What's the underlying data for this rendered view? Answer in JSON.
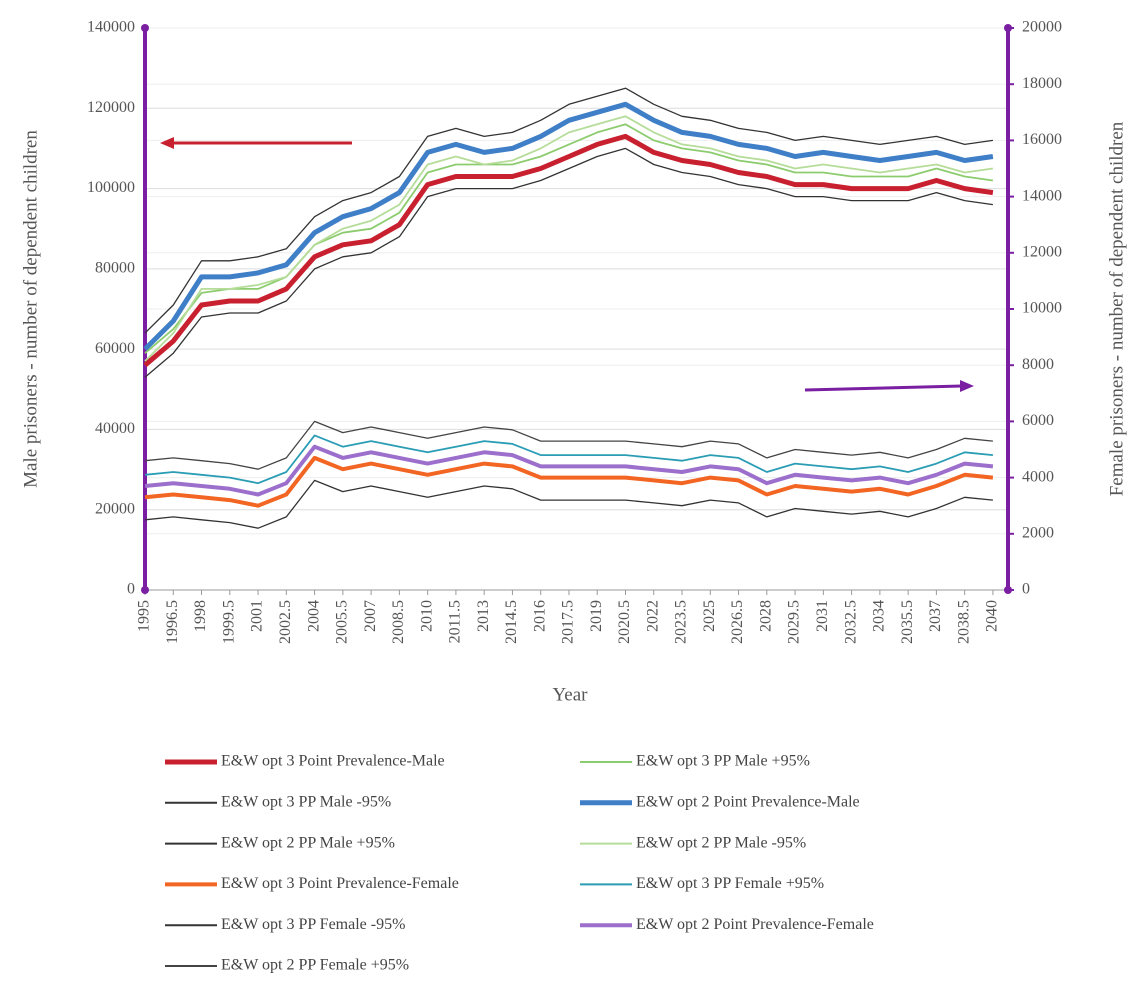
{
  "chart_data": {
    "type": "line",
    "x_label": "Year",
    "y_label": "Male prisoners - number of dependent children",
    "y2_label": "Female prisoners - number of dependent children",
    "x": [
      1995,
      1996.5,
      1998,
      1999.5,
      2001,
      2002.5,
      2004,
      2005.5,
      2007,
      2008.5,
      2010,
      2011.5,
      2013,
      2014.5,
      2016,
      2017.5,
      2019,
      2020.5,
      2022,
      2023.5,
      2025,
      2026.5,
      2028,
      2029.5,
      2031,
      2032.5,
      2034,
      2035.5,
      2037,
      2038.5,
      2040
    ],
    "xlim": [
      1995,
      2040.8
    ],
    "xticks": [
      1995,
      1996.5,
      1998,
      1999.5,
      2001,
      2002.5,
      2004,
      2005.5,
      2007,
      2008.5,
      2010,
      2011.5,
      2013,
      2014.5,
      2016,
      2017.5,
      2019,
      2020.5,
      2022,
      2023.5,
      2025,
      2026.5,
      2028,
      2029.5,
      2031,
      2032.5,
      2034,
      2035.5,
      2037,
      2038.5,
      2040
    ],
    "ylim": [
      0,
      140000
    ],
    "yticks": [
      0,
      20000,
      40000,
      60000,
      80000,
      100000,
      120000,
      140000
    ],
    "y2lim": [
      0,
      20000
    ],
    "y2ticks": [
      0,
      2000,
      4000,
      6000,
      8000,
      10000,
      12000,
      14000,
      16000,
      18000,
      20000
    ],
    "grid": true,
    "axis_color": "#7b1fa2",
    "series": [
      {
        "name": "E&W opt 3 Point Prevalence-Male",
        "color": "#c8202f",
        "width": 5,
        "values": [
          56000,
          62000,
          71000,
          72000,
          72000,
          75000,
          83000,
          86000,
          87000,
          91000,
          101000,
          103000,
          103000,
          103000,
          105000,
          108000,
          111000,
          113000,
          109000,
          107000,
          106000,
          104000,
          103000,
          101000,
          101000,
          100000,
          100000,
          100000,
          102000,
          100000,
          99000
        ]
      },
      {
        "name": "E&W opt 3 PP Male +95%",
        "color": "#8ccc6e",
        "width": 1.8,
        "values": [
          59000,
          65000,
          74000,
          75000,
          75000,
          78000,
          86000,
          89000,
          90000,
          94000,
          104000,
          106000,
          106000,
          106000,
          108000,
          111000,
          114000,
          116000,
          112000,
          110000,
          109000,
          107000,
          106000,
          104000,
          104000,
          103000,
          103000,
          103000,
          105000,
          103000,
          102000
        ]
      },
      {
        "name": "E&W opt 3 PP Male -95%",
        "color": "#333333",
        "width": 1.3,
        "values": [
          53000,
          59000,
          68000,
          69000,
          69000,
          72000,
          80000,
          83000,
          84000,
          88000,
          98000,
          100000,
          100000,
          100000,
          102000,
          105000,
          108000,
          110000,
          106000,
          104000,
          103000,
          101000,
          100000,
          98000,
          98000,
          97000,
          97000,
          97000,
          99000,
          97000,
          96000
        ]
      },
      {
        "name": "E&W opt 2 Point Prevalence-Male",
        "color": "#3f7fc8",
        "width": 5,
        "values": [
          60000,
          67000,
          78000,
          78000,
          79000,
          81000,
          89000,
          93000,
          95000,
          99000,
          109000,
          111000,
          109000,
          110000,
          113000,
          117000,
          119000,
          121000,
          117000,
          114000,
          113000,
          111000,
          110000,
          108000,
          109000,
          108000,
          107000,
          108000,
          109000,
          107000,
          108000
        ]
      },
      {
        "name": "E&W opt 2 PP Male +95%",
        "color": "#333333",
        "width": 1.3,
        "values": [
          64000,
          71000,
          82000,
          82000,
          83000,
          85000,
          93000,
          97000,
          99000,
          103000,
          113000,
          115000,
          113000,
          114000,
          117000,
          121000,
          123000,
          125000,
          121000,
          118000,
          117000,
          115000,
          114000,
          112000,
          113000,
          112000,
          111000,
          112000,
          113000,
          111000,
          112000
        ]
      },
      {
        "name": "E&W opt 2 PP Male -95%",
        "color": "#b5dc98",
        "width": 1.8,
        "values": [
          57000,
          64000,
          75000,
          75000,
          76000,
          78000,
          86000,
          90000,
          92000,
          96000,
          106000,
          108000,
          106000,
          107000,
          110000,
          114000,
          116000,
          118000,
          114000,
          111000,
          110000,
          108000,
          107000,
          105000,
          106000,
          105000,
          104000,
          105000,
          106000,
          104000,
          105000
        ]
      },
      {
        "name": "E&W opt 3 Point Prevalence-Female",
        "color": "#f26522",
        "width": 4,
        "axis": "y2",
        "values": [
          3300,
          3400,
          3300,
          3200,
          3000,
          3400,
          4700,
          4300,
          4500,
          4300,
          4100,
          4300,
          4500,
          4400,
          4000,
          4000,
          4000,
          4000,
          3900,
          3800,
          4000,
          3900,
          3400,
          3700,
          3600,
          3500,
          3600,
          3400,
          3700,
          4100,
          4000
        ]
      },
      {
        "name": "E&W opt 3 PP Female +95%",
        "color": "#2a9db5",
        "width": 1.8,
        "axis": "y2",
        "values": [
          4100,
          4200,
          4100,
          4000,
          3800,
          4200,
          5500,
          5100,
          5300,
          5100,
          4900,
          5100,
          5300,
          5200,
          4800,
          4800,
          4800,
          4800,
          4700,
          4600,
          4800,
          4700,
          4200,
          4500,
          4400,
          4300,
          4400,
          4200,
          4500,
          4900,
          4800
        ]
      },
      {
        "name": "E&W opt 3 PP Female -95%",
        "color": "#333333",
        "width": 1.3,
        "axis": "y2",
        "values": [
          2500,
          2600,
          2500,
          2400,
          2200,
          2600,
          3900,
          3500,
          3700,
          3500,
          3300,
          3500,
          3700,
          3600,
          3200,
          3200,
          3200,
          3200,
          3100,
          3000,
          3200,
          3100,
          2600,
          2900,
          2800,
          2700,
          2800,
          2600,
          2900,
          3300,
          3200
        ]
      },
      {
        "name": "E&W opt 2 Point Prevalence-Female",
        "color": "#9b6fcb",
        "width": 4,
        "axis": "y2",
        "values": [
          3700,
          3800,
          3700,
          3600,
          3400,
          3800,
          5100,
          4700,
          4900,
          4700,
          4500,
          4700,
          4900,
          4800,
          4400,
          4400,
          4400,
          4400,
          4300,
          4200,
          4400,
          4300,
          3800,
          4100,
          4000,
          3900,
          4000,
          3800,
          4100,
          4500,
          4400
        ]
      },
      {
        "name": "E&W opt 2 PP Female +95%",
        "color": "#444444",
        "width": 1.3,
        "axis": "y2",
        "values": [
          4600,
          4700,
          4600,
          4500,
          4300,
          4700,
          6000,
          5600,
          5800,
          5600,
          5400,
          5600,
          5800,
          5700,
          5300,
          5300,
          5300,
          5300,
          5200,
          5100,
          5300,
          5200,
          4700,
          5000,
          4900,
          4800,
          4900,
          4700,
          5000,
          5400,
          5300
        ]
      }
    ]
  }
}
